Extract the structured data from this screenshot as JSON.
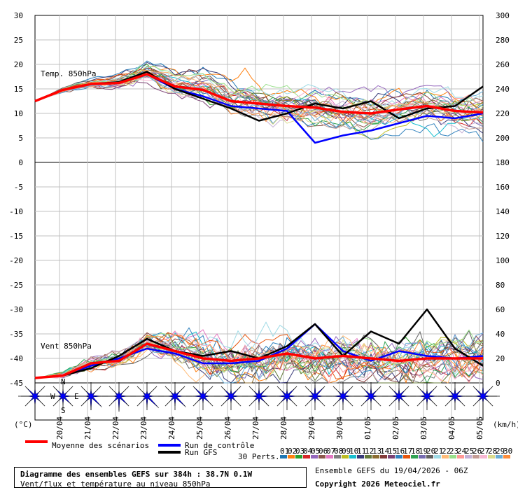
{
  "chart_data": {
    "type": "line",
    "x": [
      "20/04",
      "21/04",
      "22/04",
      "23/04",
      "24/04",
      "25/04",
      "26/04",
      "27/04",
      "28/04",
      "29/04",
      "30/04",
      "01/05",
      "02/05",
      "03/05",
      "04/05",
      "05/05"
    ],
    "top_panel": {
      "label": "Temp. 850hPa",
      "left_ticks": [
        "30",
        "25",
        "20",
        "15",
        "10",
        "5",
        "0"
      ],
      "right_ticks": [
        "300",
        "280",
        "260",
        "240",
        "220",
        "200",
        "180"
      ],
      "ylim": [
        0,
        30
      ],
      "mean": [
        12.5,
        14.8,
        16.0,
        16.2,
        18.0,
        15.5,
        14.8,
        12.5,
        12.0,
        11.5,
        11.2,
        10.3,
        10.0,
        10.8,
        11.5,
        10.5,
        10.2
      ],
      "control": [
        12.5,
        14.8,
        16.0,
        16.2,
        18.0,
        15.0,
        13.5,
        11.5,
        11.0,
        10.5,
        4.0,
        5.5,
        6.5,
        8.0,
        9.5,
        9.0,
        10.0
      ],
      "gfs": [
        12.5,
        14.8,
        16.0,
        16.4,
        18.5,
        15.0,
        13.0,
        11.0,
        8.5,
        10.0,
        12.0,
        11.0,
        12.5,
        9.0,
        11.0,
        11.5,
        15.5
      ]
    },
    "bottom_panel": {
      "label": "Vent 850hPa",
      "left_ticks": [
        "-5",
        "-10",
        "-15",
        "-20",
        "-25",
        "-30",
        "-35",
        "-40",
        "-45"
      ],
      "right_ticks": [
        "160",
        "140",
        "120",
        "100",
        "80",
        "60",
        "40",
        "20",
        "0"
      ],
      "ylim": [
        -45,
        0
      ],
      "mean": [
        -44.0,
        -43.5,
        -41.0,
        -40.5,
        -37.0,
        -38.5,
        -40.0,
        -40.5,
        -40.0,
        -39.0,
        -40.0,
        -39.5,
        -40.0,
        -40.5,
        -40.0,
        -40.0,
        -40.0
      ],
      "control": [
        -44.0,
        -43.5,
        -41.5,
        -40.0,
        -38.0,
        -39.0,
        -41.0,
        -41.0,
        -40.5,
        -38.0,
        -33.0,
        -38.5,
        -40.5,
        -38.5,
        -39.5,
        -40.0,
        -39.5
      ],
      "gfs": [
        -44.0,
        -43.5,
        -42.0,
        -39.5,
        -36.0,
        -38.5,
        -39.5,
        -38.5,
        -40.0,
        -37.5,
        -33.0,
        -39.5,
        -34.5,
        -37.0,
        -30.0,
        -38.0,
        -41.5
      ]
    },
    "wind_roses": [
      {
        "petals": [
          0.4,
          0.2,
          0.2,
          0.3,
          0.5,
          0.3,
          0.3,
          0.6
        ]
      },
      {
        "petals": [
          0.3,
          0.2,
          0.4,
          0.6,
          0.4,
          0.2,
          0.2,
          0.5
        ]
      },
      {
        "petals": [
          0.3,
          0.2,
          0.5,
          0.9,
          0.8,
          0.3,
          0.2,
          0.3
        ]
      },
      {
        "petals": [
          0.2,
          0.2,
          0.4,
          0.7,
          0.9,
          0.4,
          0.2,
          0.2
        ]
      },
      {
        "petals": [
          0.2,
          0.2,
          0.3,
          1.0,
          0.6,
          0.3,
          0.2,
          0.2
        ]
      },
      {
        "petals": [
          0.2,
          0.3,
          0.4,
          0.9,
          0.5,
          0.3,
          0.3,
          0.2
        ]
      },
      {
        "petals": [
          0.3,
          0.2,
          0.3,
          0.4,
          0.3,
          0.3,
          0.5,
          0.7
        ]
      },
      {
        "petals": [
          0.3,
          0.5,
          0.4,
          0.3,
          0.3,
          0.3,
          0.4,
          0.5
        ]
      },
      {
        "petals": [
          0.4,
          0.4,
          0.6,
          0.4,
          0.4,
          0.3,
          0.3,
          0.3
        ]
      },
      {
        "petals": [
          0.3,
          0.6,
          0.5,
          0.3,
          0.3,
          0.4,
          0.5,
          0.4
        ]
      },
      {
        "petals": [
          0.6,
          0.7,
          0.4,
          0.3,
          0.3,
          0.3,
          0.4,
          0.3
        ]
      },
      {
        "petals": [
          0.3,
          0.5,
          0.4,
          0.3,
          0.4,
          0.3,
          0.5,
          0.3
        ]
      },
      {
        "petals": [
          0.5,
          0.4,
          0.3,
          0.3,
          0.3,
          0.4,
          0.4,
          0.5
        ]
      },
      {
        "petals": [
          0.4,
          0.4,
          0.5,
          0.3,
          0.3,
          0.3,
          0.4,
          0.4
        ]
      },
      {
        "petals": [
          0.3,
          0.5,
          0.5,
          0.3,
          0.4,
          0.3,
          0.4,
          0.5
        ]
      },
      {
        "petals": [
          0.4,
          0.4,
          0.5,
          0.4,
          0.3,
          0.3,
          0.5,
          0.3
        ]
      },
      {
        "petals": [
          0.6,
          0.5,
          0.3,
          0.3,
          0.3,
          0.3,
          0.4,
          0.6
        ]
      }
    ],
    "compass": {
      "n": "N",
      "s": "S",
      "w": "W",
      "e": "E"
    },
    "units_left": "(°C)",
    "units_right": "(km/h)",
    "legend": {
      "mean": "Moyenne des scénarios",
      "control": "Run de contrôle",
      "gfs": "Run GFS",
      "perts": "30 Perts."
    },
    "pert_numbers": [
      "01",
      "02",
      "03",
      "04",
      "05",
      "06",
      "07",
      "08",
      "09",
      "10",
      "11",
      "12",
      "13",
      "14",
      "15",
      "16",
      "17",
      "18",
      "19",
      "20",
      "21",
      "22",
      "23",
      "24",
      "25",
      "26",
      "27",
      "28",
      "29",
      "30"
    ],
    "pert_colors": [
      "#1f77b4",
      "#ff7f0e",
      "#2ca02c",
      "#d62728",
      "#9467bd",
      "#8c564b",
      "#e377c2",
      "#7f7f7f",
      "#bcbd22",
      "#17becf",
      "#393b79",
      "#637939",
      "#8c6d31",
      "#843c39",
      "#7b4173",
      "#3182bd",
      "#e6550d",
      "#31a354",
      "#756bb1",
      "#636363",
      "#9edae5",
      "#ffbb78",
      "#98df8a",
      "#ff9896",
      "#c5b0d5",
      "#c49c94",
      "#f7b6d2",
      "#dbdb8d",
      "#6baed6",
      "#fd8d3c"
    ],
    "colors": {
      "mean": "#ff0000",
      "control": "#0000ff",
      "gfs": "#000000",
      "grid": "#c0c0c0",
      "rose": "#0000ff"
    }
  },
  "footer": {
    "title": "Diagramme des ensembles GEFS sur 384h : 38.7N 0.1W",
    "subtitle": "Vent/flux et température au niveau 850hPa",
    "ensemble": "Ensemble GEFS du 19/04/2026 - 06Z",
    "copyright": "Copyright 2026 Meteociel.fr"
  }
}
